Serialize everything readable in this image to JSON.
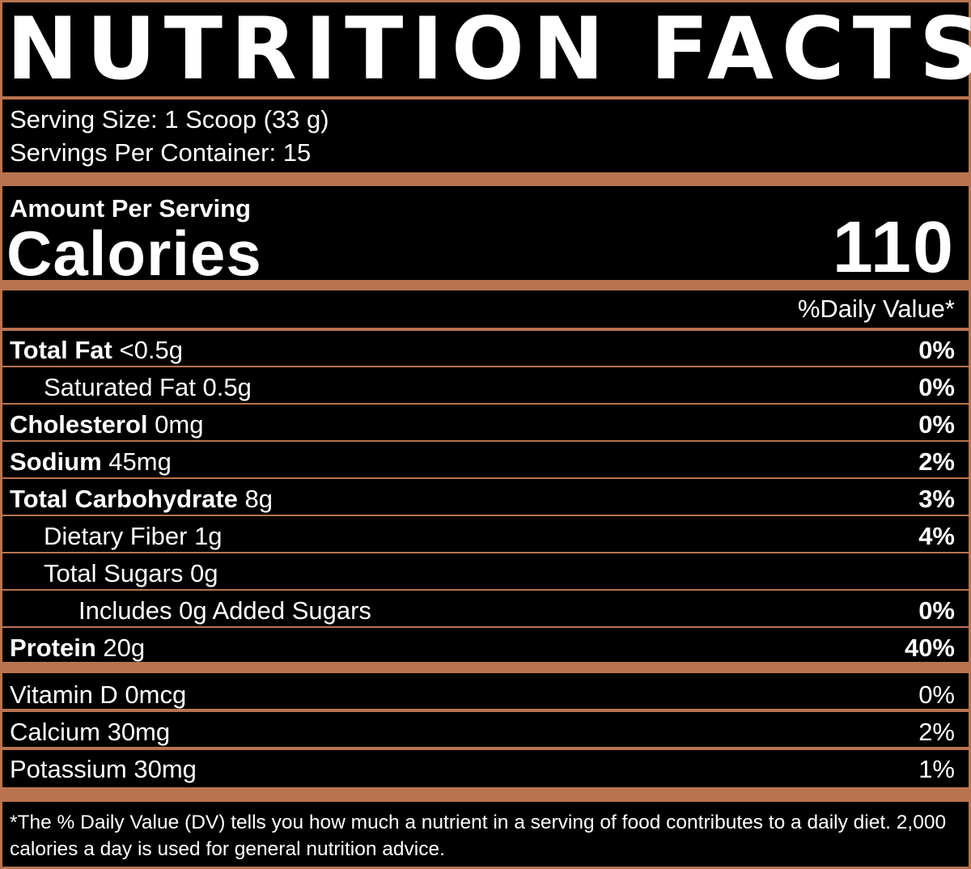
{
  "title": "NUTRITION FACTS",
  "serving_size": "Serving Size: 1 Scoop (33 g)",
  "servings_per_container": "Servings Per Container: 15",
  "amount_per_serving": "Amount Per Serving",
  "calories_label": "Calories",
  "calories_value": "110",
  "daily_value_header": "%Daily Value*",
  "nutrients": [
    {
      "name": "Total Fat",
      "amount": "<0.5g",
      "dv": "0%"
    },
    {
      "name": "Saturated Fat",
      "amount": "0.5g",
      "dv": "0%"
    },
    {
      "name": "Cholesterol",
      "amount": "0mg",
      "dv": "0%"
    },
    {
      "name": "Sodium",
      "amount": "45mg",
      "dv": "2%"
    },
    {
      "name": "Total Carbohydrate",
      "amount": "8g",
      "dv": "3%"
    },
    {
      "name": "Dietary Fiber",
      "amount": "1g",
      "dv": "4%"
    },
    {
      "name": "Total Sugars",
      "amount": "0g",
      "dv": ""
    },
    {
      "name": "Includes 0g Added Sugars",
      "amount": "",
      "dv": "0%"
    },
    {
      "name": "Protein",
      "amount": "20g",
      "dv": "40%"
    }
  ],
  "vitamins": [
    {
      "name": "Vitamin D 0mcg",
      "dv": "0%"
    },
    {
      "name": "Calcium 30mg",
      "dv": "2%"
    },
    {
      "name": "Potassium 30mg",
      "dv": "1%"
    }
  ],
  "footnote": "*The % Daily Value (DV) tells you how much a nutrient in a serving of food contributes to a daily diet. 2,000 calories a day is used for general nutrition advice.",
  "colors": {
    "background": "#000000",
    "rule": "#b9744f",
    "text": "#ffffff"
  }
}
